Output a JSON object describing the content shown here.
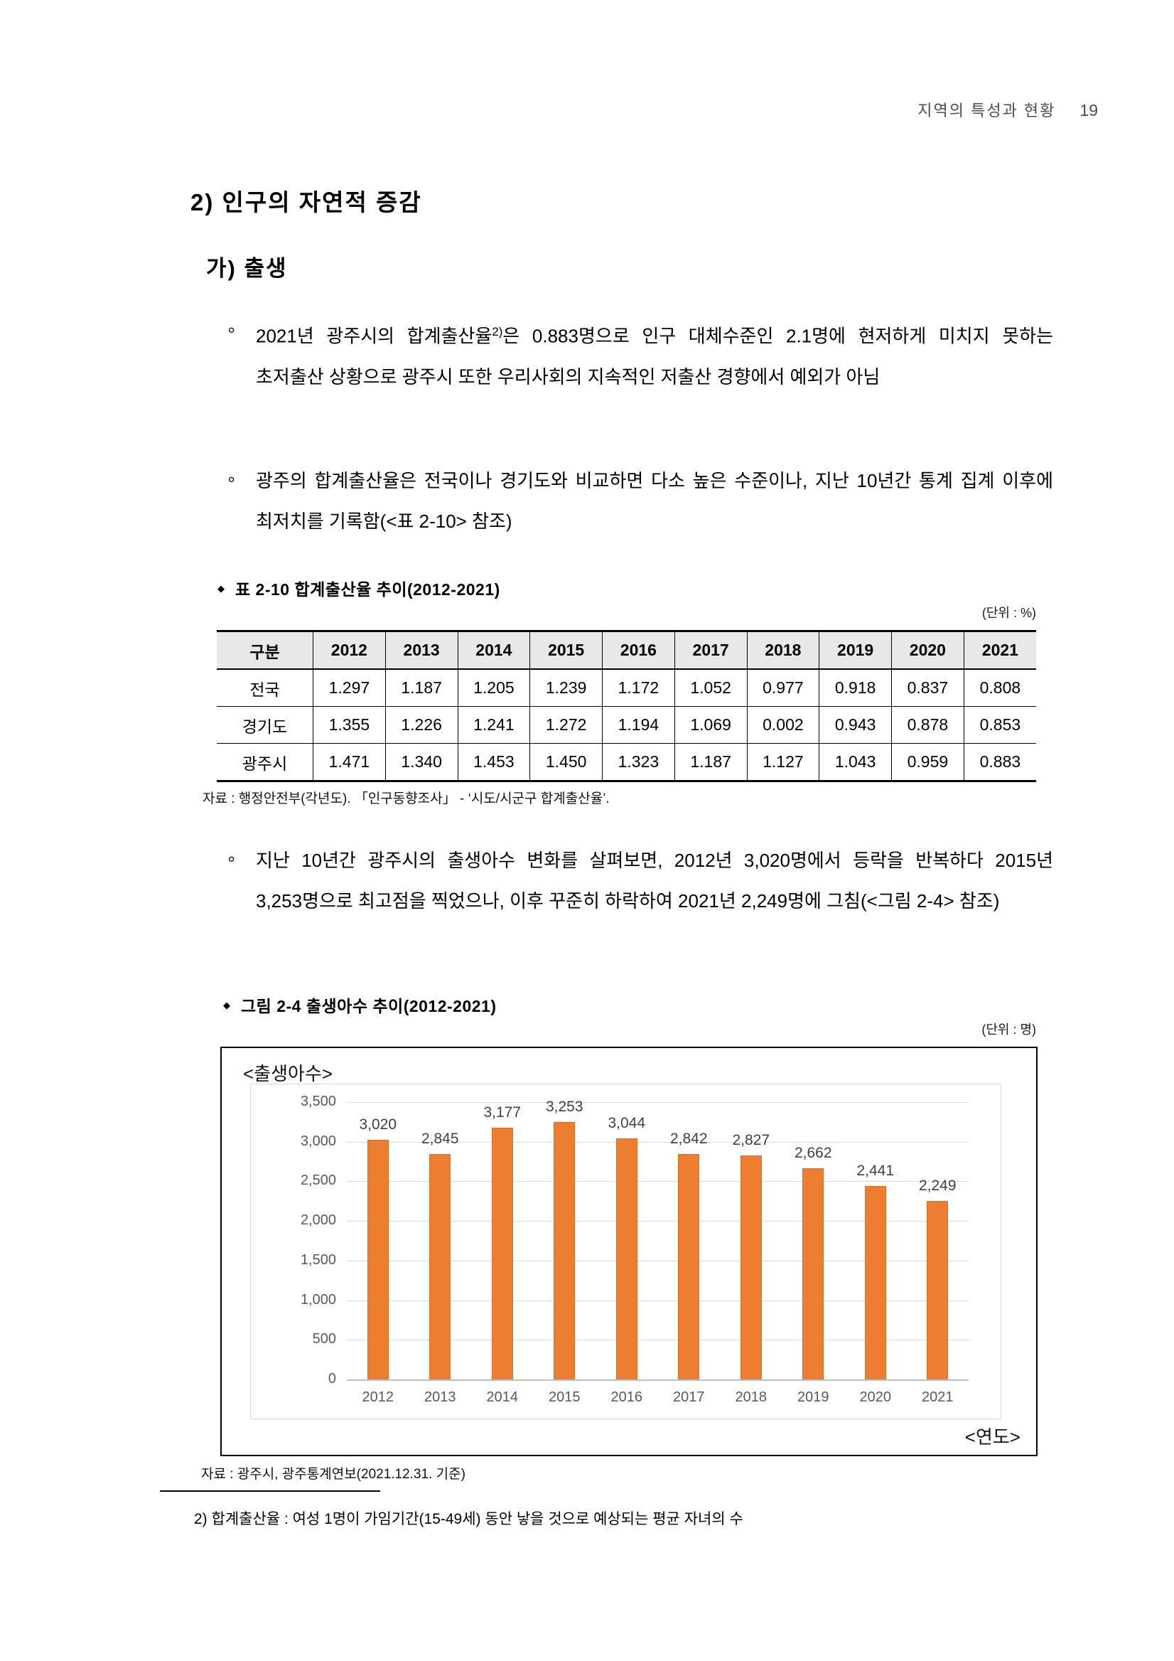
{
  "header": {
    "title": "지역의 특성과 현황",
    "page_number": "19"
  },
  "section": {
    "title": "2) 인구의 자연적 증감",
    "subtitle": "가) 출생"
  },
  "bullets": {
    "marker": "∘",
    "b1_pre": "2021년 광주시의 합계출산율",
    "b1_sup": "2)",
    "b1_post": "은 0.883명으로 인구 대체수준인 2.1명에 현저하게 미치지 못하는 초저출산 상황으로 광주시 또한 우리사회의 지속적인 저출산 경향에서 예외가 아님",
    "b2": "광주의 합계출산율은 전국이나 경기도와 비교하면 다소 높은 수준이나, 지난 10년간 통계 집계 이후에 최저치를 기록함(<표 2-10> 참조)",
    "b3": "지난 10년간 광주시의 출생아수 변화를 살펴보면, 2012년 3,020명에서 등락을 반복하다 2015년 3,253명으로 최고점을 찍었으나, 이후 꾸준히 하락하여 2021년 2,249명에 그침(<그림 2-4> 참조)"
  },
  "table": {
    "marker": "◆",
    "caption": "표 2-10 합계출산율 추이(2012-2021)",
    "unit": "(단위 : %)",
    "columns": [
      "구분",
      "2012",
      "2013",
      "2014",
      "2015",
      "2016",
      "2017",
      "2018",
      "2019",
      "2020",
      "2021"
    ],
    "rows": [
      {
        "label": "전국",
        "values": [
          "1.297",
          "1.187",
          "1.205",
          "1.239",
          "1.172",
          "1.052",
          "0.977",
          "0.918",
          "0.837",
          "0.808"
        ]
      },
      {
        "label": "경기도",
        "values": [
          "1.355",
          "1.226",
          "1.241",
          "1.272",
          "1.194",
          "1.069",
          "0.002",
          "0.943",
          "0.878",
          "0.853"
        ]
      },
      {
        "label": "광주시",
        "values": [
          "1.471",
          "1.340",
          "1.453",
          "1.450",
          "1.323",
          "1.187",
          "1.127",
          "1.043",
          "0.959",
          "0.883"
        ]
      }
    ],
    "source": "자료 : 행정안전부(각년도). 「인구동향조사」 - ‘시도/시군구 합계출산율’."
  },
  "figure": {
    "marker": "◆",
    "caption": "그림 2-4 출생아수 추이(2012-2021)",
    "unit": "(단위 : 명)",
    "source": "자료 : 광주시, 광주통계연보(2021.12.31. 기준)"
  },
  "chart_data": {
    "type": "bar",
    "title": "<출생아수>",
    "x_axis_label": "<연도>",
    "categories": [
      "2012",
      "2013",
      "2014",
      "2015",
      "2016",
      "2017",
      "2018",
      "2019",
      "2020",
      "2021"
    ],
    "values": [
      3020,
      2845,
      3177,
      3253,
      3044,
      2842,
      2827,
      2662,
      2441,
      2249
    ],
    "value_labels": [
      "3,020",
      "2,845",
      "3,177",
      "3,253",
      "3,044",
      "2,842",
      "2,827",
      "2,662",
      "2,441",
      "2,249"
    ],
    "ylim": [
      0,
      3500
    ],
    "y_tick_step": 500,
    "y_tick_labels": [
      "3,500",
      "3,000",
      "2,500",
      "2,000",
      "1,500",
      "1,000",
      "500",
      "0"
    ],
    "grid": true,
    "legend": "none",
    "bar_color": "#ED7D31"
  },
  "footnote": {
    "text": "2) 합계출산율 : 여성 1명이 가임기간(15-49세) 동안 낳을 것으로 예상되는 평균 자녀의 수"
  }
}
